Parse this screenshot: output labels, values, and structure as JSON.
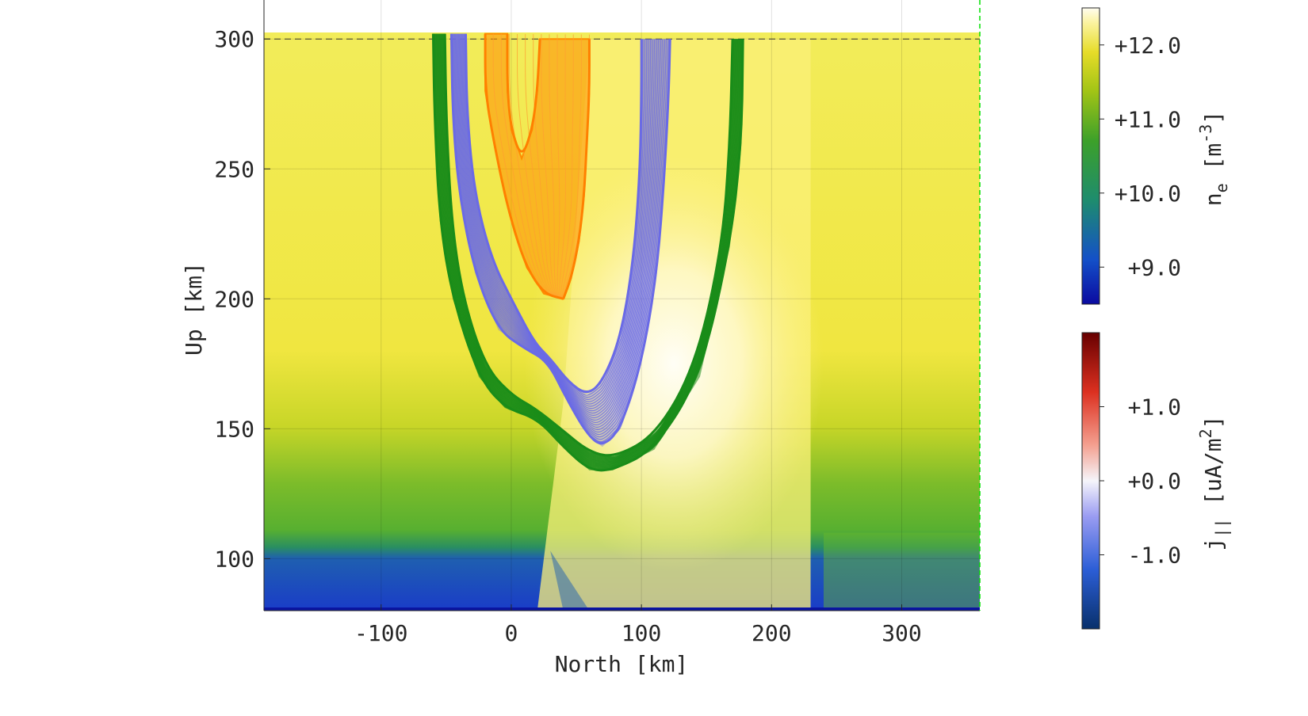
{
  "chart_data": {
    "type": "heatmap",
    "xlabel": "North [km]",
    "ylabel": "Up [km]",
    "xlim": [
      -190,
      360
    ],
    "ylim": [
      80,
      315
    ],
    "xticks": [
      -100,
      0,
      100,
      200,
      300
    ],
    "yticks": [
      100,
      150,
      200,
      250,
      300
    ],
    "xtick_labels": [
      "-100",
      "0",
      "100",
      "200",
      "300"
    ],
    "ytick_labels": [
      "100",
      "150",
      "200",
      "250",
      "300"
    ],
    "grid": true,
    "reference_line_altitude_km": 300,
    "background_field": {
      "name": "n_e",
      "units": "m^-3",
      "description_levels": "log10 electron density",
      "colorbar_ticks": [
        9.0,
        10.0,
        11.0,
        12.0
      ],
      "colorbar_labels": [
        "+9.0",
        "+10.0",
        "+11.0",
        "+12.0"
      ],
      "colorbar_range": [
        8.5,
        12.5
      ],
      "colorbar_label_main": "n",
      "colorbar_label_sub": "e",
      "colorbar_label_unit_pre": "[m",
      "colorbar_label_unit_sup": "-3",
      "colorbar_label_unit_post": "]"
    },
    "current_field": {
      "name": "j_parallel",
      "units": "uA/m^2",
      "colorbar_ticks": [
        -1.0,
        0.0,
        1.0
      ],
      "colorbar_labels": [
        "-1.0",
        "+0.0",
        "+1.0"
      ],
      "colorbar_range": [
        -2.0,
        2.0
      ],
      "colorbar_label_main": "j",
      "colorbar_label_sub": "||",
      "colorbar_label_unit_pre": "[uA/m",
      "colorbar_label_unit_sup": "2",
      "colorbar_label_unit_post": "]"
    },
    "series": [
      {
        "color": "#ff8c00",
        "left_edge": [
          [
            -20,
            302
          ],
          [
            -20,
            280
          ],
          [
            -14,
            262
          ],
          [
            -5,
            240
          ],
          [
            3,
            225
          ],
          [
            12,
            212
          ],
          [
            25,
            202
          ],
          [
            40,
            200
          ]
        ],
        "right_edge": [
          [
            60,
            300
          ],
          [
            60,
            280
          ],
          [
            58,
            260
          ],
          [
            56,
            240
          ],
          [
            52,
            222
          ],
          [
            46,
            208
          ],
          [
            40,
            200
          ]
        ],
        "inner_edge": [
          [
            22,
            300
          ],
          [
            20,
            280
          ],
          [
            16,
            265
          ],
          [
            8,
            254
          ],
          [
            0,
            265
          ],
          [
            -3,
            280
          ],
          [
            -3,
            302
          ]
        ],
        "top_caps": [
          [
            -20,
            -3
          ],
          [
            22,
            60
          ]
        ]
      },
      {
        "color": "#6a6ae6",
        "outer_edge": [
          [
            -46,
            302
          ],
          [
            -45,
            270
          ],
          [
            -40,
            240
          ],
          [
            -28,
            210
          ],
          [
            -10,
            188
          ],
          [
            10,
            181
          ],
          [
            28,
            176
          ],
          [
            42,
            162
          ],
          [
            58,
            148
          ],
          [
            70,
            143
          ],
          [
            84,
            150
          ],
          [
            100,
            175
          ],
          [
            112,
            210
          ],
          [
            118,
            250
          ],
          [
            121,
            280
          ],
          [
            122,
            300
          ]
        ],
        "inner_edge": [
          [
            -35,
            302
          ],
          [
            -34,
            270
          ],
          [
            -28,
            240
          ],
          [
            -15,
            215
          ],
          [
            2,
            198
          ],
          [
            18,
            183
          ],
          [
            30,
            177
          ],
          [
            44,
            168
          ],
          [
            58,
            163
          ],
          [
            70,
            168
          ],
          [
            84,
            185
          ],
          [
            94,
            215
          ],
          [
            99,
            250
          ],
          [
            100,
            280
          ],
          [
            100,
            300
          ]
        ],
        "top_caps": [
          [
            -46,
            -35
          ],
          [
            92,
            130
          ]
        ]
      },
      {
        "color": "#198c19",
        "outer_edge": [
          [
            -60,
            302
          ],
          [
            -59,
            270
          ],
          [
            -55,
            230
          ],
          [
            -45,
            200
          ],
          [
            -25,
            170
          ],
          [
            -5,
            158
          ],
          [
            20,
            154
          ],
          [
            40,
            143
          ],
          [
            60,
            134
          ],
          [
            78,
            134
          ],
          [
            110,
            142
          ],
          [
            145,
            170
          ],
          [
            168,
            220
          ],
          [
            177,
            260
          ],
          [
            178,
            300
          ]
        ],
        "inner_edge": [
          [
            -51,
            302
          ],
          [
            -50,
            270
          ],
          [
            -46,
            230
          ],
          [
            -37,
            200
          ],
          [
            -20,
            174
          ],
          [
            0,
            163
          ],
          [
            18,
            158
          ],
          [
            38,
            150
          ],
          [
            60,
            141
          ],
          [
            80,
            139
          ],
          [
            112,
            148
          ],
          [
            142,
            175
          ],
          [
            162,
            220
          ],
          [
            168,
            260
          ],
          [
            170,
            300
          ]
        ],
        "top_caps": [
          [
            -60,
            -51
          ],
          [
            160,
            200
          ]
        ]
      }
    ]
  }
}
